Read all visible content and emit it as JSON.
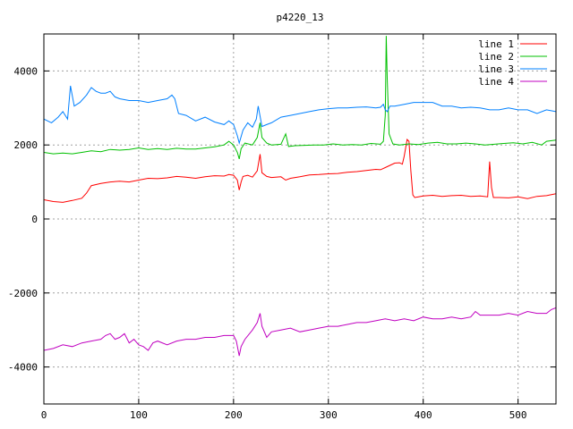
{
  "chart_data": {
    "type": "line",
    "title": "p4220_13",
    "xlabel": "",
    "ylabel": "",
    "xlim": [
      0,
      540
    ],
    "ylim": [
      -5000,
      5000
    ],
    "xticks": [
      0,
      100,
      200,
      300,
      400,
      500
    ],
    "yticks": [
      -4000,
      -2000,
      0,
      2000,
      4000
    ],
    "grid": true,
    "legend_position": "top-right",
    "series": [
      {
        "name": "line 1",
        "color": "#ff0000",
        "points": [
          [
            0,
            520
          ],
          [
            10,
            470
          ],
          [
            20,
            450
          ],
          [
            30,
            500
          ],
          [
            40,
            560
          ],
          [
            45,
            700
          ],
          [
            50,
            900
          ],
          [
            60,
            960
          ],
          [
            70,
            1000
          ],
          [
            80,
            1020
          ],
          [
            90,
            1000
          ],
          [
            100,
            1050
          ],
          [
            110,
            1100
          ],
          [
            120,
            1090
          ],
          [
            130,
            1110
          ],
          [
            140,
            1150
          ],
          [
            150,
            1130
          ],
          [
            160,
            1100
          ],
          [
            170,
            1140
          ],
          [
            180,
            1170
          ],
          [
            190,
            1160
          ],
          [
            195,
            1200
          ],
          [
            200,
            1180
          ],
          [
            204,
            1050
          ],
          [
            206,
            780
          ],
          [
            208,
            1000
          ],
          [
            210,
            1150
          ],
          [
            215,
            1180
          ],
          [
            220,
            1130
          ],
          [
            225,
            1300
          ],
          [
            228,
            1750
          ],
          [
            230,
            1250
          ],
          [
            235,
            1150
          ],
          [
            240,
            1120
          ],
          [
            250,
            1140
          ],
          [
            255,
            1050
          ],
          [
            260,
            1100
          ],
          [
            270,
            1140
          ],
          [
            280,
            1190
          ],
          [
            290,
            1200
          ],
          [
            300,
            1220
          ],
          [
            310,
            1230
          ],
          [
            320,
            1260
          ],
          [
            330,
            1280
          ],
          [
            340,
            1310
          ],
          [
            350,
            1340
          ],
          [
            355,
            1330
          ],
          [
            360,
            1390
          ],
          [
            365,
            1450
          ],
          [
            370,
            1510
          ],
          [
            375,
            1520
          ],
          [
            378,
            1480
          ],
          [
            380,
            1700
          ],
          [
            383,
            2150
          ],
          [
            385,
            2100
          ],
          [
            387,
            1300
          ],
          [
            389,
            650
          ],
          [
            391,
            580
          ],
          [
            395,
            600
          ],
          [
            400,
            620
          ],
          [
            410,
            640
          ],
          [
            420,
            610
          ],
          [
            430,
            630
          ],
          [
            440,
            640
          ],
          [
            450,
            610
          ],
          [
            460,
            620
          ],
          [
            468,
            600
          ],
          [
            470,
            1550
          ],
          [
            472,
            850
          ],
          [
            474,
            580
          ],
          [
            480,
            580
          ],
          [
            490,
            570
          ],
          [
            500,
            600
          ],
          [
            510,
            550
          ],
          [
            520,
            610
          ],
          [
            530,
            630
          ],
          [
            540,
            680
          ]
        ]
      },
      {
        "name": "line 2",
        "color": "#00c000",
        "points": [
          [
            0,
            1800
          ],
          [
            10,
            1760
          ],
          [
            20,
            1780
          ],
          [
            30,
            1760
          ],
          [
            40,
            1800
          ],
          [
            50,
            1840
          ],
          [
            60,
            1820
          ],
          [
            70,
            1880
          ],
          [
            80,
            1860
          ],
          [
            90,
            1880
          ],
          [
            100,
            1920
          ],
          [
            110,
            1880
          ],
          [
            120,
            1900
          ],
          [
            130,
            1880
          ],
          [
            140,
            1910
          ],
          [
            150,
            1890
          ],
          [
            160,
            1890
          ],
          [
            170,
            1920
          ],
          [
            180,
            1950
          ],
          [
            190,
            2000
          ],
          [
            195,
            2100
          ],
          [
            200,
            2000
          ],
          [
            204,
            1800
          ],
          [
            206,
            1620
          ],
          [
            208,
            1900
          ],
          [
            212,
            2050
          ],
          [
            220,
            2000
          ],
          [
            225,
            2200
          ],
          [
            228,
            2600
          ],
          [
            230,
            2200
          ],
          [
            235,
            2050
          ],
          [
            240,
            2000
          ],
          [
            250,
            2020
          ],
          [
            255,
            2300
          ],
          [
            258,
            1960
          ],
          [
            265,
            1980
          ],
          [
            275,
            1990
          ],
          [
            285,
            2000
          ],
          [
            295,
            2000
          ],
          [
            305,
            2030
          ],
          [
            315,
            2000
          ],
          [
            325,
            2010
          ],
          [
            335,
            2000
          ],
          [
            345,
            2040
          ],
          [
            355,
            2020
          ],
          [
            358,
            2100
          ],
          [
            360,
            2800
          ],
          [
            361,
            4950
          ],
          [
            362,
            3800
          ],
          [
            364,
            2300
          ],
          [
            368,
            2030
          ],
          [
            375,
            2000
          ],
          [
            385,
            2030
          ],
          [
            395,
            2010
          ],
          [
            405,
            2050
          ],
          [
            415,
            2070
          ],
          [
            425,
            2030
          ],
          [
            435,
            2030
          ],
          [
            445,
            2050
          ],
          [
            455,
            2030
          ],
          [
            465,
            2000
          ],
          [
            475,
            2020
          ],
          [
            485,
            2040
          ],
          [
            495,
            2060
          ],
          [
            505,
            2030
          ],
          [
            515,
            2070
          ],
          [
            525,
            2000
          ],
          [
            530,
            2100
          ],
          [
            540,
            2130
          ]
        ]
      },
      {
        "name": "line 3",
        "color": "#0080ff",
        "points": [
          [
            0,
            2700
          ],
          [
            8,
            2600
          ],
          [
            15,
            2750
          ],
          [
            20,
            2900
          ],
          [
            25,
            2700
          ],
          [
            28,
            3600
          ],
          [
            32,
            3050
          ],
          [
            38,
            3150
          ],
          [
            45,
            3350
          ],
          [
            50,
            3550
          ],
          [
            55,
            3450
          ],
          [
            60,
            3400
          ],
          [
            65,
            3400
          ],
          [
            70,
            3450
          ],
          [
            75,
            3300
          ],
          [
            80,
            3250
          ],
          [
            90,
            3200
          ],
          [
            100,
            3200
          ],
          [
            110,
            3150
          ],
          [
            120,
            3200
          ],
          [
            130,
            3250
          ],
          [
            135,
            3350
          ],
          [
            138,
            3250
          ],
          [
            142,
            2850
          ],
          [
            150,
            2800
          ],
          [
            160,
            2650
          ],
          [
            170,
            2750
          ],
          [
            180,
            2620
          ],
          [
            190,
            2550
          ],
          [
            195,
            2650
          ],
          [
            200,
            2550
          ],
          [
            204,
            2250
          ],
          [
            206,
            2050
          ],
          [
            210,
            2400
          ],
          [
            215,
            2600
          ],
          [
            220,
            2480
          ],
          [
            224,
            2700
          ],
          [
            226,
            3050
          ],
          [
            230,
            2500
          ],
          [
            235,
            2550
          ],
          [
            240,
            2600
          ],
          [
            250,
            2750
          ],
          [
            260,
            2800
          ],
          [
            270,
            2850
          ],
          [
            280,
            2900
          ],
          [
            290,
            2950
          ],
          [
            300,
            2980
          ],
          [
            310,
            3000
          ],
          [
            320,
            3000
          ],
          [
            330,
            3020
          ],
          [
            340,
            3030
          ],
          [
            350,
            3000
          ],
          [
            355,
            3020
          ],
          [
            358,
            3100
          ],
          [
            360,
            2950
          ],
          [
            362,
            2900
          ],
          [
            365,
            3050
          ],
          [
            370,
            3050
          ],
          [
            380,
            3100
          ],
          [
            390,
            3150
          ],
          [
            400,
            3150
          ],
          [
            410,
            3150
          ],
          [
            420,
            3050
          ],
          [
            430,
            3050
          ],
          [
            440,
            3000
          ],
          [
            450,
            3020
          ],
          [
            460,
            3000
          ],
          [
            470,
            2950
          ],
          [
            480,
            2950
          ],
          [
            490,
            3000
          ],
          [
            500,
            2950
          ],
          [
            510,
            2950
          ],
          [
            520,
            2850
          ],
          [
            530,
            2950
          ],
          [
            540,
            2900
          ]
        ]
      },
      {
        "name": "line 4",
        "color": "#c000c0",
        "points": [
          [
            0,
            -3550
          ],
          [
            10,
            -3500
          ],
          [
            20,
            -3400
          ],
          [
            30,
            -3450
          ],
          [
            40,
            -3350
          ],
          [
            50,
            -3300
          ],
          [
            60,
            -3250
          ],
          [
            65,
            -3150
          ],
          [
            70,
            -3100
          ],
          [
            75,
            -3250
          ],
          [
            80,
            -3200
          ],
          [
            85,
            -3100
          ],
          [
            90,
            -3350
          ],
          [
            95,
            -3250
          ],
          [
            100,
            -3400
          ],
          [
            105,
            -3450
          ],
          [
            110,
            -3550
          ],
          [
            115,
            -3350
          ],
          [
            120,
            -3300
          ],
          [
            130,
            -3400
          ],
          [
            140,
            -3300
          ],
          [
            150,
            -3250
          ],
          [
            160,
            -3250
          ],
          [
            170,
            -3200
          ],
          [
            180,
            -3200
          ],
          [
            190,
            -3150
          ],
          [
            200,
            -3150
          ],
          [
            203,
            -3300
          ],
          [
            206,
            -3700
          ],
          [
            208,
            -3450
          ],
          [
            212,
            -3250
          ],
          [
            220,
            -3000
          ],
          [
            225,
            -2800
          ],
          [
            228,
            -2550
          ],
          [
            230,
            -2900
          ],
          [
            235,
            -3200
          ],
          [
            240,
            -3050
          ],
          [
            250,
            -3000
          ],
          [
            260,
            -2950
          ],
          [
            270,
            -3050
          ],
          [
            280,
            -3000
          ],
          [
            290,
            -2950
          ],
          [
            300,
            -2900
          ],
          [
            310,
            -2900
          ],
          [
            320,
            -2850
          ],
          [
            330,
            -2800
          ],
          [
            340,
            -2800
          ],
          [
            350,
            -2750
          ],
          [
            360,
            -2700
          ],
          [
            370,
            -2750
          ],
          [
            380,
            -2700
          ],
          [
            390,
            -2750
          ],
          [
            400,
            -2650
          ],
          [
            410,
            -2700
          ],
          [
            420,
            -2700
          ],
          [
            430,
            -2650
          ],
          [
            440,
            -2700
          ],
          [
            450,
            -2650
          ],
          [
            455,
            -2500
          ],
          [
            460,
            -2600
          ],
          [
            470,
            -2600
          ],
          [
            480,
            -2600
          ],
          [
            490,
            -2550
          ],
          [
            500,
            -2600
          ],
          [
            510,
            -2500
          ],
          [
            520,
            -2550
          ],
          [
            530,
            -2550
          ],
          [
            535,
            -2450
          ],
          [
            540,
            -2400
          ]
        ]
      }
    ]
  }
}
